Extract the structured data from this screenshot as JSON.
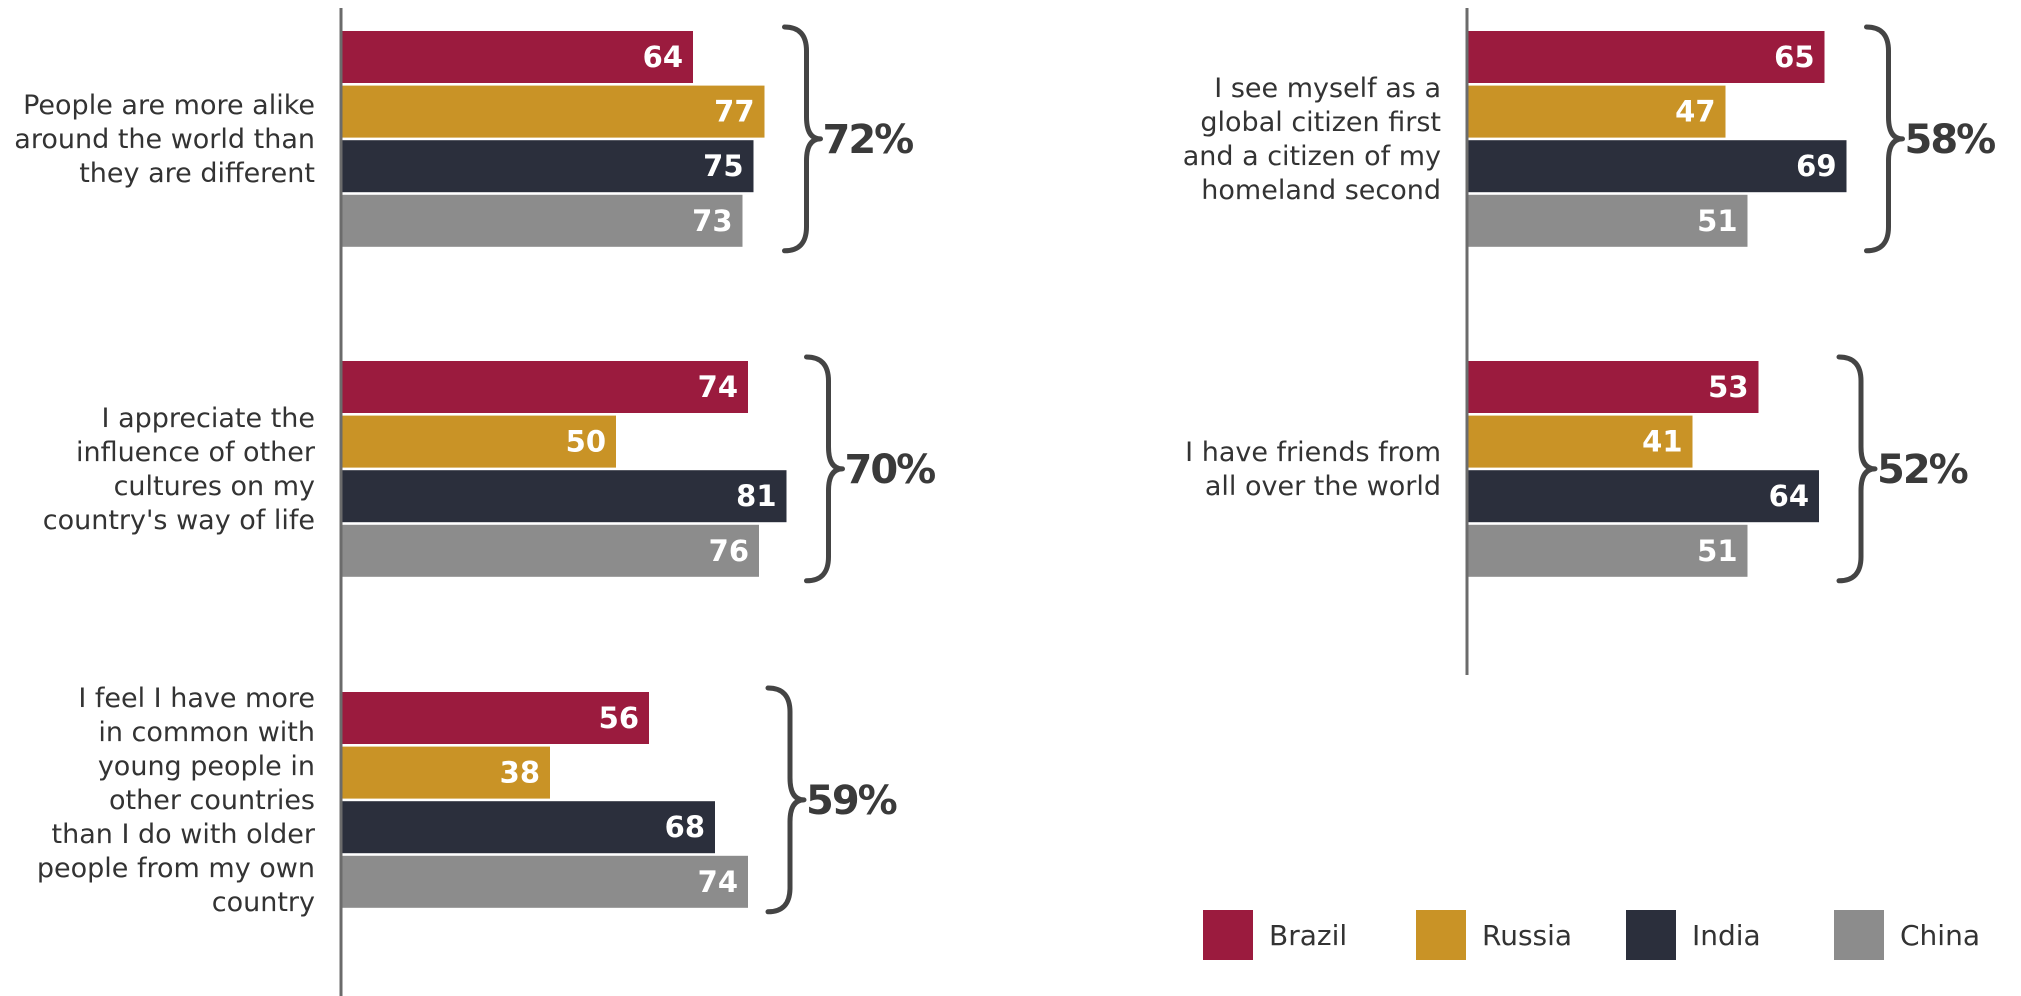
{
  "chart_data": {
    "type": "bar",
    "orientation": "horizontal",
    "legend_placement": "bottom-right",
    "series": [
      {
        "name": "Brazil",
        "color": "#9b1b3e"
      },
      {
        "name": "Russia",
        "color": "#c99326"
      },
      {
        "name": "India",
        "color": "#2b2f3c"
      },
      {
        "name": "China",
        "color": "#8c8c8c"
      }
    ],
    "groups": [
      {
        "label": [
          "People are more alike",
          "around the world than",
          "they are different"
        ],
        "values": [
          64,
          77,
          75,
          73
        ],
        "average": "72%"
      },
      {
        "label": [
          "I appreciate the",
          "influence of other",
          "cultures on my",
          "country's way of life"
        ],
        "values": [
          74,
          50,
          81,
          76
        ],
        "average": "70%"
      },
      {
        "label": [
          "I feel I have more",
          "in common with",
          "young people in",
          "other countries",
          "than I do with older",
          "people from my own",
          "country"
        ],
        "values": [
          56,
          38,
          68,
          74
        ],
        "average": "59%"
      },
      {
        "label": [
          "I see myself as a",
          "global citizen first",
          "and a citizen of my",
          "homeland second"
        ],
        "values": [
          65,
          47,
          69,
          51
        ],
        "average": "58%"
      },
      {
        "label": [
          "I have friends from",
          "all over the world"
        ],
        "values": [
          53,
          41,
          64,
          51
        ],
        "average": "52%"
      }
    ]
  }
}
